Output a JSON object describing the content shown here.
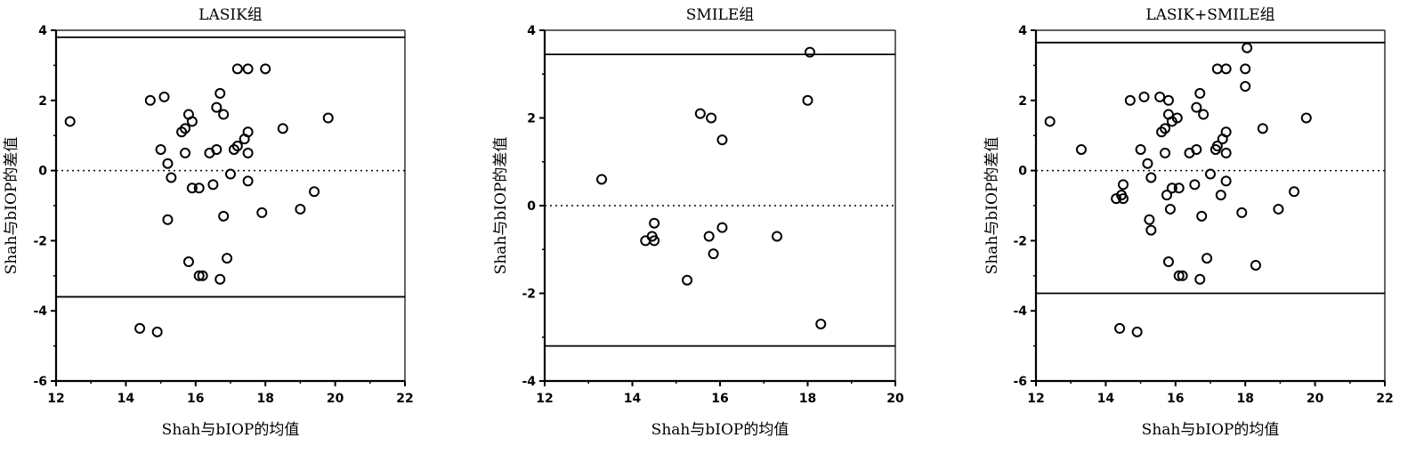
{
  "chart_data": [
    {
      "type": "scatter",
      "title": "LASIK组",
      "xlabel": "Shah与bIOP的均值",
      "ylabel": "Shah与bIOP的差值",
      "xlim": [
        12,
        22
      ],
      "ylim": [
        -6,
        4
      ],
      "xticks": [
        12,
        14,
        16,
        18,
        20,
        22
      ],
      "yticks": [
        -6,
        -4,
        -2,
        0,
        2,
        4
      ],
      "mean_line": 0,
      "upper_limit": 3.8,
      "lower_limit": -3.6,
      "points": [
        [
          12.4,
          1.4
        ],
        [
          14.7,
          2.0
        ],
        [
          15.1,
          2.1
        ],
        [
          14.4,
          -4.5
        ],
        [
          14.9,
          -4.6
        ],
        [
          15.0,
          0.6
        ],
        [
          15.2,
          0.2
        ],
        [
          15.3,
          -0.2
        ],
        [
          15.2,
          -1.4
        ],
        [
          15.6,
          1.1
        ],
        [
          15.7,
          1.2
        ],
        [
          15.8,
          1.6
        ],
        [
          15.9,
          1.4
        ],
        [
          15.7,
          0.5
        ],
        [
          15.9,
          -0.5
        ],
        [
          16.1,
          -0.5
        ],
        [
          15.8,
          -2.6
        ],
        [
          16.1,
          -3.0
        ],
        [
          16.2,
          -3.0
        ],
        [
          16.4,
          0.5
        ],
        [
          16.5,
          -0.4
        ],
        [
          16.6,
          0.6
        ],
        [
          16.6,
          1.8
        ],
        [
          16.7,
          2.2
        ],
        [
          16.8,
          1.6
        ],
        [
          16.8,
          -1.3
        ],
        [
          16.9,
          -2.5
        ],
        [
          17.0,
          -0.1
        ],
        [
          17.1,
          0.6
        ],
        [
          17.2,
          0.7
        ],
        [
          17.4,
          0.9
        ],
        [
          17.5,
          1.1
        ],
        [
          17.5,
          0.5
        ],
        [
          17.5,
          -0.3
        ],
        [
          17.2,
          2.9
        ],
        [
          17.5,
          2.9
        ],
        [
          18.0,
          2.9
        ],
        [
          18.5,
          1.2
        ],
        [
          17.9,
          -1.2
        ],
        [
          19.0,
          -1.1
        ],
        [
          19.4,
          -0.6
        ],
        [
          19.8,
          1.5
        ],
        [
          16.7,
          -3.1
        ]
      ]
    },
    {
      "type": "scatter",
      "title": "SMILE组",
      "xlabel": "Shah与bIOP的均值",
      "ylabel": "Shah与bIOP的差值",
      "xlim": [
        12,
        20
      ],
      "ylim": [
        -4,
        4
      ],
      "xticks": [
        12,
        14,
        16,
        18,
        20
      ],
      "yticks": [
        -4,
        -2,
        0,
        2,
        4
      ],
      "mean_line": 0,
      "upper_limit": 3.45,
      "lower_limit": -3.2,
      "points": [
        [
          13.3,
          0.6
        ],
        [
          14.3,
          -0.8
        ],
        [
          14.45,
          -0.7
        ],
        [
          14.5,
          -0.8
        ],
        [
          14.5,
          -0.4
        ],
        [
          15.25,
          -1.7
        ],
        [
          15.55,
          2.1
        ],
        [
          15.8,
          2.0
        ],
        [
          15.75,
          -0.7
        ],
        [
          15.85,
          -1.1
        ],
        [
          16.05,
          1.5
        ],
        [
          16.05,
          -0.5
        ],
        [
          17.3,
          -0.7
        ],
        [
          18.0,
          2.4
        ],
        [
          18.05,
          3.5
        ],
        [
          18.3,
          -2.7
        ]
      ]
    },
    {
      "type": "scatter",
      "title": "LASIK+SMILE组",
      "xlabel": "Shah与bIOP的均值",
      "ylabel": "Shah与bIOP的差值",
      "xlim": [
        12,
        22
      ],
      "ylim": [
        -6,
        4
      ],
      "xticks": [
        12,
        14,
        16,
        18,
        20,
        22
      ],
      "yticks": [
        -6,
        -4,
        -2,
        0,
        2,
        4
      ],
      "mean_line": 0,
      "upper_limit": 3.65,
      "lower_limit": -3.5,
      "points": [
        [
          12.4,
          1.4
        ],
        [
          13.3,
          0.6
        ],
        [
          14.3,
          -0.8
        ],
        [
          14.4,
          -4.5
        ],
        [
          14.45,
          -0.7
        ],
        [
          14.5,
          -0.4
        ],
        [
          14.5,
          -0.8
        ],
        [
          14.7,
          2.0
        ],
        [
          14.9,
          -4.6
        ],
        [
          15.0,
          0.6
        ],
        [
          15.1,
          2.1
        ],
        [
          15.2,
          0.2
        ],
        [
          15.25,
          -1.4
        ],
        [
          15.3,
          -1.7
        ],
        [
          15.3,
          -0.2
        ],
        [
          15.55,
          2.1
        ],
        [
          15.6,
          1.1
        ],
        [
          15.7,
          1.2
        ],
        [
          15.7,
          0.5
        ],
        [
          15.75,
          -0.7
        ],
        [
          15.8,
          2.0
        ],
        [
          15.8,
          1.6
        ],
        [
          15.8,
          -2.6
        ],
        [
          15.85,
          -1.1
        ],
        [
          15.9,
          1.4
        ],
        [
          15.9,
          -0.5
        ],
        [
          16.05,
          1.5
        ],
        [
          16.1,
          -0.5
        ],
        [
          16.1,
          -3.0
        ],
        [
          16.2,
          -3.0
        ],
        [
          16.4,
          0.5
        ],
        [
          16.55,
          -0.4
        ],
        [
          16.6,
          0.6
        ],
        [
          16.6,
          1.8
        ],
        [
          16.7,
          2.2
        ],
        [
          16.75,
          -1.3
        ],
        [
          16.7,
          -3.1
        ],
        [
          16.8,
          1.6
        ],
        [
          16.9,
          -2.5
        ],
        [
          17.0,
          -0.1
        ],
        [
          17.15,
          0.6
        ],
        [
          17.2,
          0.7
        ],
        [
          17.2,
          2.9
        ],
        [
          17.3,
          -0.7
        ],
        [
          17.35,
          0.9
        ],
        [
          17.45,
          1.1
        ],
        [
          17.45,
          0.5
        ],
        [
          17.45,
          -0.3
        ],
        [
          17.45,
          2.9
        ],
        [
          18.0,
          2.9
        ],
        [
          18.0,
          2.4
        ],
        [
          18.05,
          3.5
        ],
        [
          18.3,
          -2.7
        ],
        [
          18.5,
          1.2
        ],
        [
          17.9,
          -1.2
        ],
        [
          18.95,
          -1.1
        ],
        [
          19.4,
          -0.6
        ],
        [
          19.75,
          1.5
        ]
      ]
    }
  ]
}
